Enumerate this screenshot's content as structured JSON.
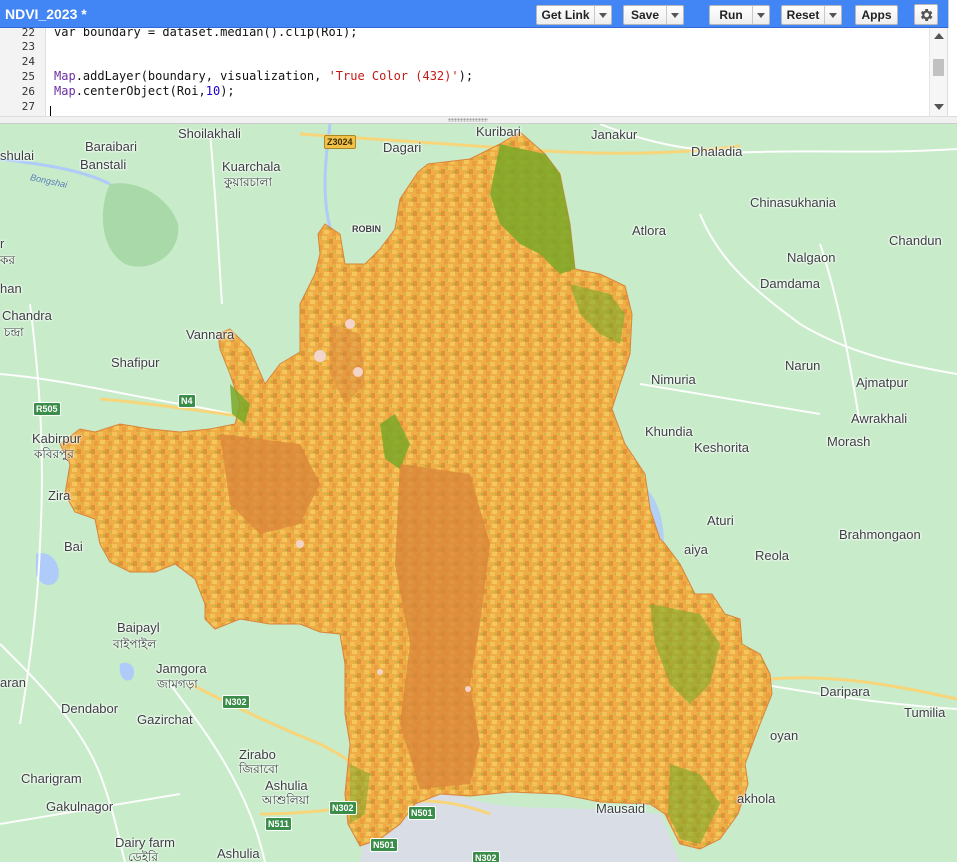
{
  "toolbar": {
    "script_title": "NDVI_2023 *",
    "get_link_label": "Get Link",
    "save_label": "Save",
    "run_label": "Run",
    "reset_label": "Reset",
    "apps_label": "Apps",
    "accent_color": "#4285f4"
  },
  "editor": {
    "lines": [
      {
        "number": "22",
        "text": "var boundary = dataset.median().clip(Roi);"
      },
      {
        "number": "23",
        "text": ""
      },
      {
        "number": "24",
        "text": ""
      },
      {
        "number": "25",
        "text": "Map.addLayer(boundary, visualization, 'True Color (432)');"
      },
      {
        "number": "26",
        "text": "Map.centerObject(Roi,10);"
      },
      {
        "number": "27",
        "text": ""
      }
    ]
  },
  "map": {
    "places": [
      {
        "name": "Shoilakhali"
      },
      {
        "name": "Kuribari"
      },
      {
        "name": "Janakur"
      },
      {
        "name": "Dhaladia"
      },
      {
        "name": "Baraibari"
      },
      {
        "name": "Banstali"
      },
      {
        "name": "Kuarchala"
      },
      {
        "name": "কুয়ারচালা"
      },
      {
        "name": "Dagari"
      },
      {
        "name": "Chinasukhania"
      },
      {
        "name": "Atlora"
      },
      {
        "name": "Chandun"
      },
      {
        "name": "Nalgaon"
      },
      {
        "name": "Damdama"
      },
      {
        "name": "Chandra"
      },
      {
        "name": "চন্দ্রা"
      },
      {
        "name": "Vannara"
      },
      {
        "name": "Shafipur"
      },
      {
        "name": "Nimuria"
      },
      {
        "name": "Narun"
      },
      {
        "name": "Ajmatpur"
      },
      {
        "name": "Awrakhali"
      },
      {
        "name": "Kabirpur"
      },
      {
        "name": "কবিরপুর"
      },
      {
        "name": "Khundia"
      },
      {
        "name": "Keshorita"
      },
      {
        "name": "Morash"
      },
      {
        "name": "Zira"
      },
      {
        "name": "Aturi"
      },
      {
        "name": "Brahmongaon"
      },
      {
        "name": "Bai"
      },
      {
        "name": "Reola"
      },
      {
        "name": "aiya"
      },
      {
        "name": "Baipayl"
      },
      {
        "name": "বাইপাইল"
      },
      {
        "name": "Jamgora"
      },
      {
        "name": "জামগড়া"
      },
      {
        "name": "aran"
      },
      {
        "name": "Dendabor"
      },
      {
        "name": "Gazirchat"
      },
      {
        "name": "Daripara"
      },
      {
        "name": "Tumilia"
      },
      {
        "name": "oyan"
      },
      {
        "name": "Zirabo"
      },
      {
        "name": "জিরাবো"
      },
      {
        "name": "Ashulia"
      },
      {
        "name": "আশুলিয়া"
      },
      {
        "name": "Charigram"
      },
      {
        "name": "Gakulnagor"
      },
      {
        "name": "Mausaid"
      },
      {
        "name": "akhola"
      },
      {
        "name": "Dairy farm"
      },
      {
        "name": "ডেইরি"
      },
      {
        "name": "Ashulia"
      },
      {
        "name": "shulai"
      },
      {
        "name": "han"
      },
      {
        "name": "r"
      },
      {
        "name": "কর"
      }
    ],
    "roads": [
      {
        "ref": "Z3024"
      },
      {
        "ref": "R505"
      },
      {
        "ref": "N4"
      },
      {
        "ref": "N302"
      },
      {
        "ref": "N302"
      },
      {
        "ref": "N511"
      },
      {
        "ref": "N501"
      },
      {
        "ref": "N501"
      },
      {
        "ref": "N302"
      }
    ],
    "river_label": "Bongshai",
    "poi_label": "ROBIN"
  }
}
